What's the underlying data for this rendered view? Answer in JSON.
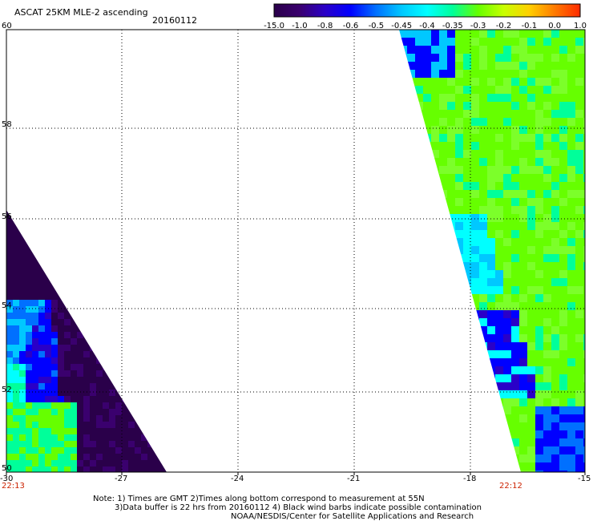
{
  "header": {
    "title": "ASCAT 25KM MLE-2 ascending",
    "date": "20160112"
  },
  "colorbar": {
    "labels": [
      "-15.0",
      "-1.0",
      "-0.8",
      "-0.6",
      "-0.5",
      "-0.45",
      "-0.4",
      "-0.35",
      "-0.3",
      "-0.2",
      "-0.1",
      "0.0",
      "1.0"
    ],
    "colors": [
      "#2a004a",
      "#3a006e",
      "#2a00c8",
      "#0000ff",
      "#0070ff",
      "#00c8ff",
      "#00ffff",
      "#00ff9a",
      "#66ff00",
      "#c8ff00",
      "#ffd000",
      "#ff7a00",
      "#ff2a00"
    ]
  },
  "map": {
    "lon_labels": [
      "-30",
      "-27",
      "-24",
      "-21",
      "-18",
      "-15"
    ],
    "lat_labels": [
      "60",
      "58",
      "56",
      "54",
      "52",
      "50"
    ],
    "time_left": "22:13",
    "time_right": "22:12"
  },
  "notes": {
    "line1": "Note: 1) Times are GMT 2)Times along bottom correspond to measurement at 55N",
    "line2": "3)Data buffer is 22 hrs from 20160112 4) Black wind barbs indicate possible contamination",
    "line3": "NOAA/NESDIS/Center for Satellite Applications and Research"
  }
}
